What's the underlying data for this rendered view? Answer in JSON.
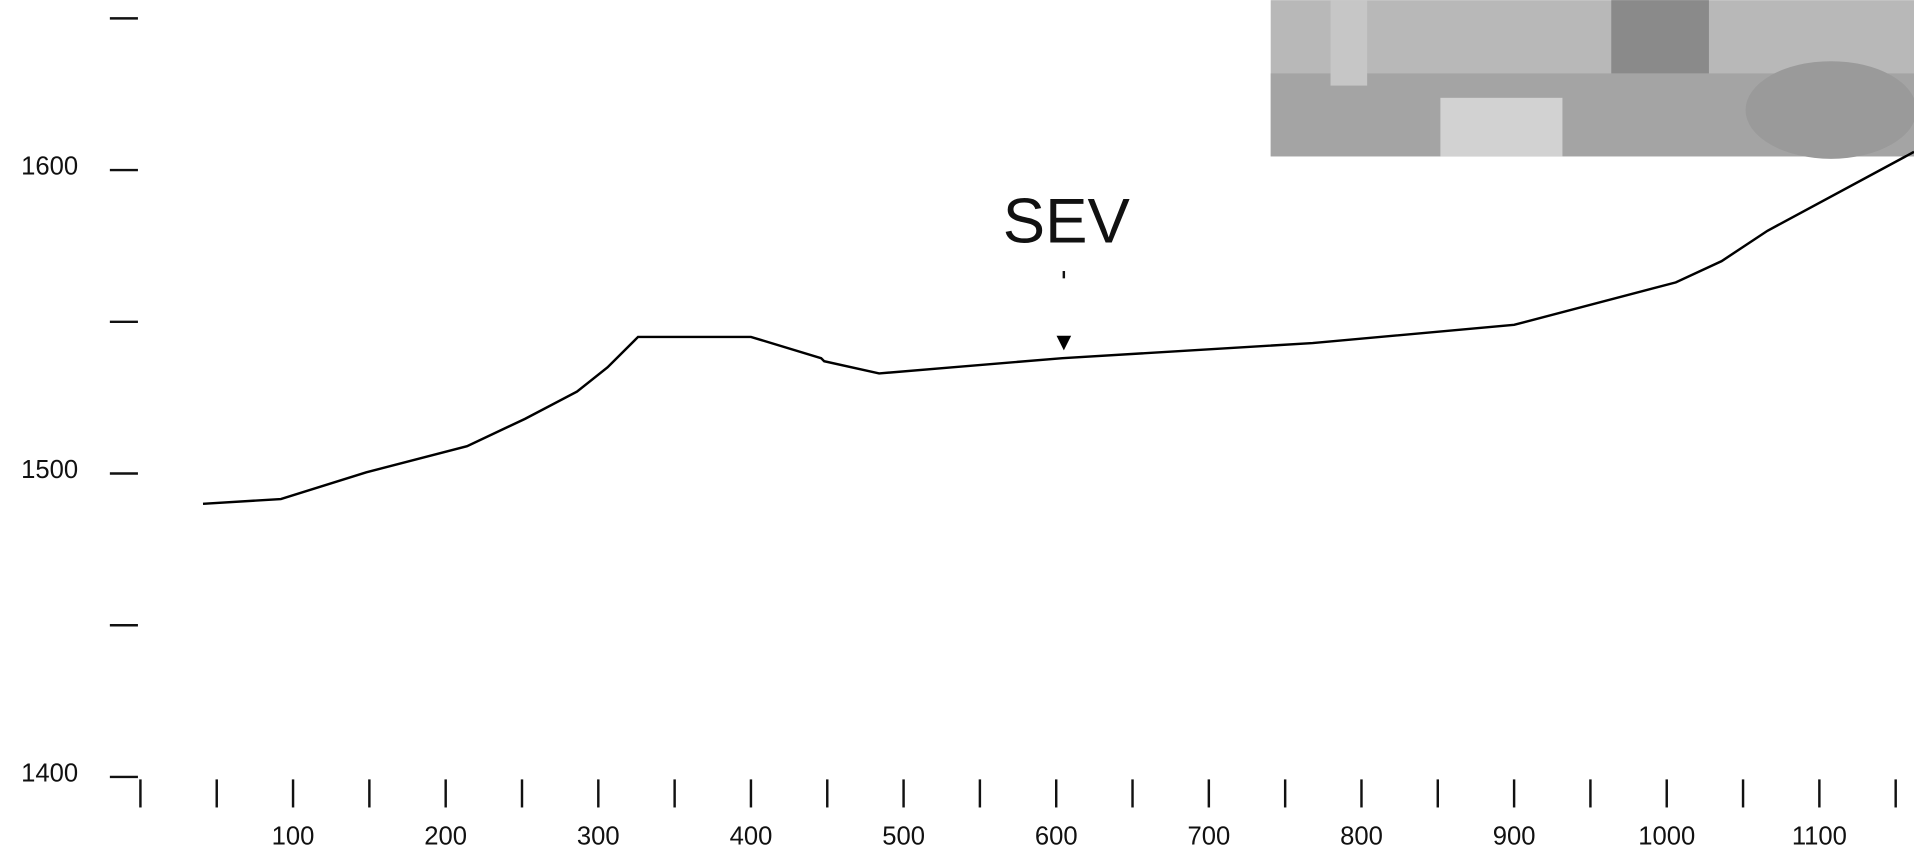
{
  "chart_data": {
    "type": "line",
    "x": [
      41,
      92,
      148,
      214,
      252,
      286,
      306,
      326,
      400,
      446,
      448,
      484,
      532,
      604,
      768,
      900,
      1006,
      1036,
      1066,
      1162
    ],
    "values": [
      1490,
      1491.6,
      1500.4,
      1509,
      1518,
      1527,
      1535,
      1545,
      1545,
      1538,
      1537,
      1533,
      1535,
      1538,
      1543,
      1549,
      1563,
      1570,
      1580,
      1606
    ],
    "color": "#000000",
    "xlim": [
      -92,
      1162
    ],
    "ylim": [
      1374,
      1656
    ],
    "xticks": [
      100,
      200,
      300,
      400,
      500,
      600,
      700,
      800,
      900,
      1000,
      1100
    ],
    "xminorticks": [
      0,
      50,
      150,
      250,
      350,
      450,
      550,
      650,
      750,
      850,
      950,
      1050,
      1150
    ],
    "yticks": [
      1400,
      1500,
      1600
    ],
    "yminorticks": [
      1450,
      1550,
      1650
    ],
    "annotations": [
      {
        "text": "SEV",
        "x": 605,
        "y": 1543
      }
    ]
  }
}
